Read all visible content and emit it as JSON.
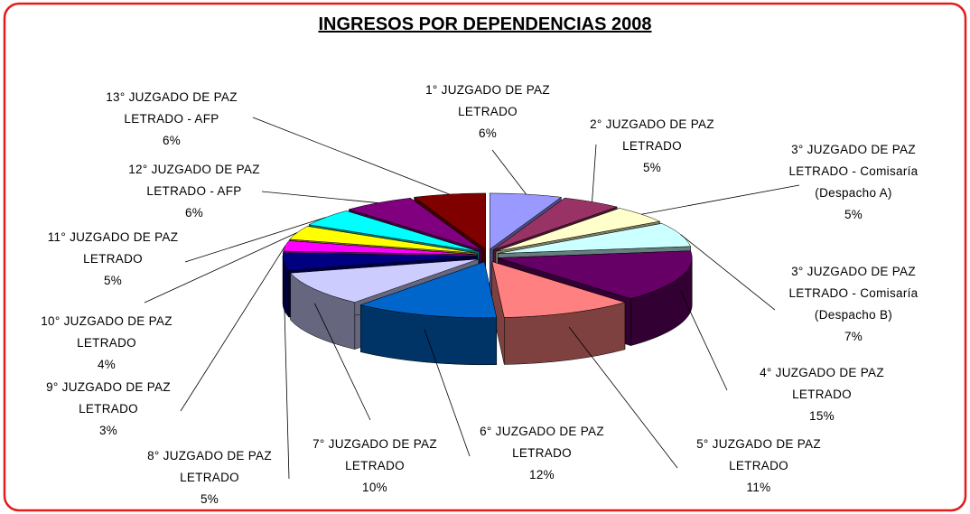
{
  "chart_data": {
    "type": "pie",
    "title": "INGRESOS POR DEPENDENCIAS 2008",
    "categories": [
      "1° JUZGADO DE PAZ LETRADO",
      "2° JUZGADO DE PAZ LETRADO",
      "3° JUZGADO DE PAZ LETRADO - Comisaría (Despacho A)",
      "3° JUZGADO DE PAZ LETRADO - Comisaría (Despacho B)",
      "4° JUZGADO DE PAZ LETRADO",
      "5° JUZGADO DE PAZ LETRADO",
      "6° JUZGADO DE PAZ LETRADO",
      "7° JUZGADO DE PAZ LETRADO",
      "8° JUZGADO DE PAZ LETRADO",
      "9° JUZGADO DE PAZ LETRADO",
      "10° JUZGADO DE PAZ LETRADO",
      "11° JUZGADO DE PAZ LETRADO",
      "12° JUZGADO DE PAZ LETRADO - AFP",
      "13° JUZGADO DE PAZ LETRADO - AFP"
    ],
    "values": [
      6,
      5,
      5,
      7,
      15,
      11,
      12,
      10,
      5,
      3,
      4,
      5,
      6,
      6
    ],
    "value_labels": [
      "6%",
      "5%",
      "5%",
      "7%",
      "15%",
      "11%",
      "12%",
      "10%",
      "5%",
      "3%",
      "4%",
      "5%",
      "6%",
      "6%"
    ],
    "colors": [
      "#9999ff",
      "#993366",
      "#ffffcc",
      "#ccffff",
      "#660066",
      "#ff8080",
      "#0066cc",
      "#ccccff",
      "#000080",
      "#ff00ff",
      "#ffff00",
      "#00ffff",
      "#800080",
      "#800000"
    ]
  }
}
